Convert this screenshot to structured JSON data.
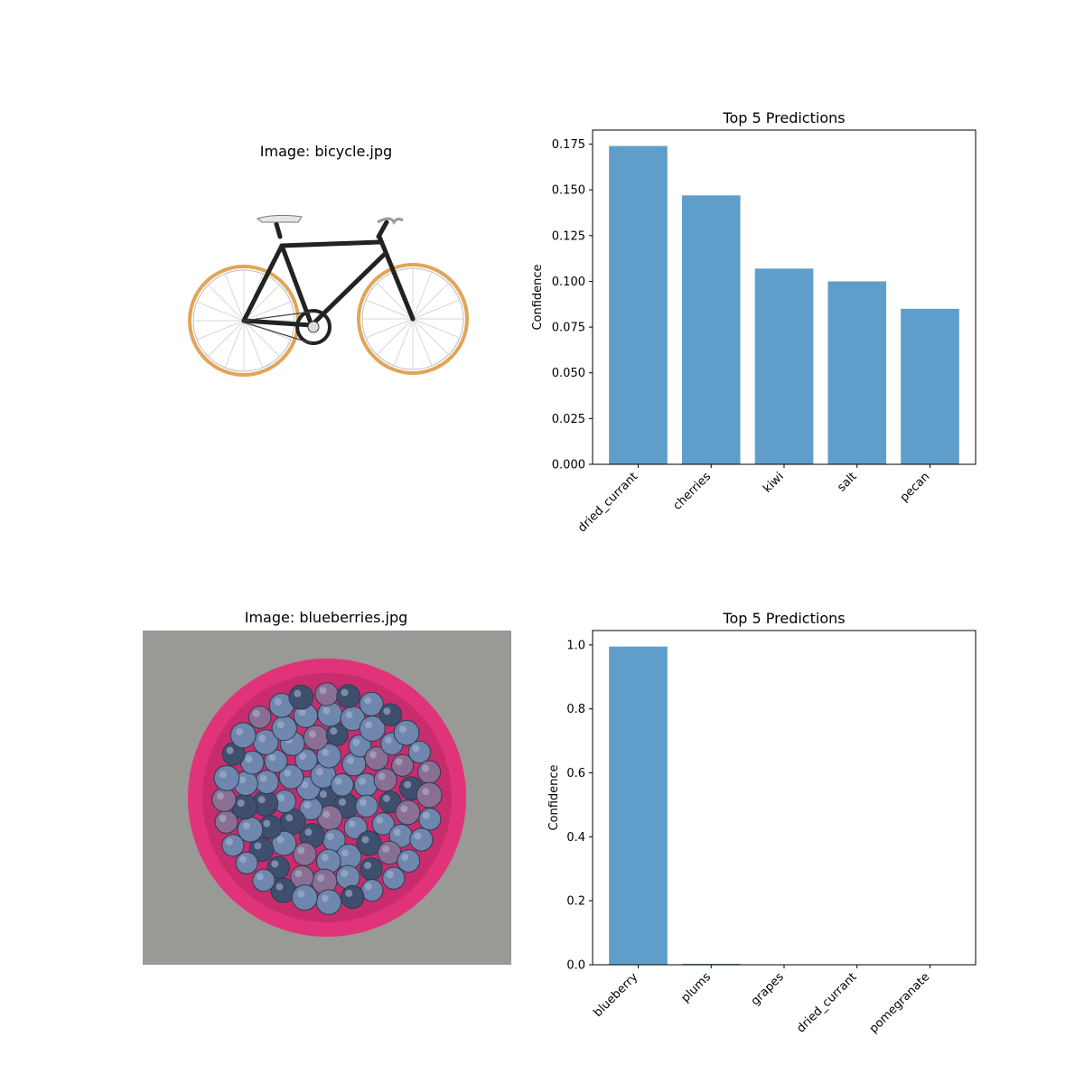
{
  "images": [
    {
      "title": "Image: bicycle.jpg",
      "subject": "bicycle"
    },
    {
      "title": "Image: blueberries.jpg",
      "subject": "bowl of blueberries"
    }
  ],
  "colors": {
    "bar": "#5f9ecb",
    "frame": "#000000",
    "bowl": "#e0337a",
    "berry": "#6f86ad",
    "tire": "#e0a55a"
  },
  "chart_data": [
    {
      "type": "bar",
      "title": "Top 5 Predictions",
      "ylabel": "Confidence",
      "xlabel": "",
      "categories": [
        "dried_currant",
        "cherries",
        "kiwi",
        "salt",
        "pecan"
      ],
      "values": [
        0.174,
        0.147,
        0.107,
        0.1,
        0.085
      ],
      "ylim": [
        0,
        0.1827
      ],
      "yticks": [
        0.0,
        0.025,
        0.05,
        0.075,
        0.1,
        0.125,
        0.15,
        0.175
      ],
      "ytick_labels": [
        "0.000",
        "0.025",
        "0.050",
        "0.075",
        "0.100",
        "0.125",
        "0.150",
        "0.175"
      ],
      "grid": false
    },
    {
      "type": "bar",
      "title": "Top 5 Predictions",
      "ylabel": "Confidence",
      "xlabel": "",
      "categories": [
        "blueberry",
        "plums",
        "grapes",
        "dried_currant",
        "pomegranate"
      ],
      "values": [
        0.995,
        0.003,
        0.001,
        0.0005,
        0.0003
      ],
      "ylim": [
        0,
        1.045
      ],
      "yticks": [
        0.0,
        0.2,
        0.4,
        0.6,
        0.8,
        1.0
      ],
      "ytick_labels": [
        "0.0",
        "0.2",
        "0.4",
        "0.6",
        "0.8",
        "1.0"
      ],
      "grid": false
    }
  ]
}
